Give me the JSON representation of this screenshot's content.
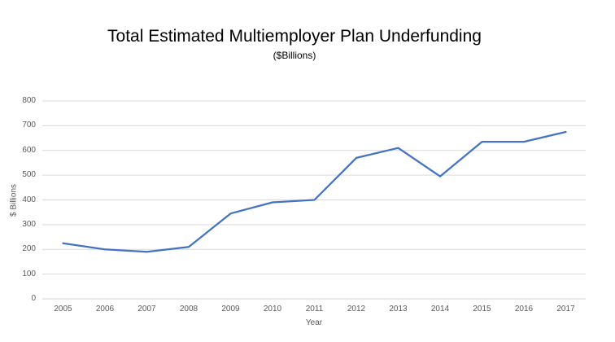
{
  "chart_data": {
    "type": "line",
    "title": "Total Estimated Multiemployer Plan Underfunding",
    "subtitle": "($Billions)",
    "xlabel": "Year",
    "ylabel": "$ Billions",
    "categories": [
      "2005",
      "2006",
      "2007",
      "2008",
      "2009",
      "2010",
      "2011",
      "2012",
      "2013",
      "2014",
      "2015",
      "2016",
      "2017"
    ],
    "series": [
      {
        "name": "Total Estimated Multiemployer Plan Underfunding",
        "values": [
          225,
          200,
          190,
          210,
          345,
          390,
          400,
          570,
          610,
          495,
          635,
          635,
          675
        ]
      }
    ],
    "ylim": [
      0,
      800
    ],
    "yticks": [
      0,
      100,
      200,
      300,
      400,
      500,
      600,
      700,
      800
    ],
    "grid": true,
    "legend_position": "none",
    "colors": {
      "line": "#4472C4",
      "gridline": "#D9D9D9",
      "axis_line": "#D0D0D4",
      "axis_label": "#595959",
      "title": "#000000",
      "background": "#FFFFFF"
    }
  }
}
